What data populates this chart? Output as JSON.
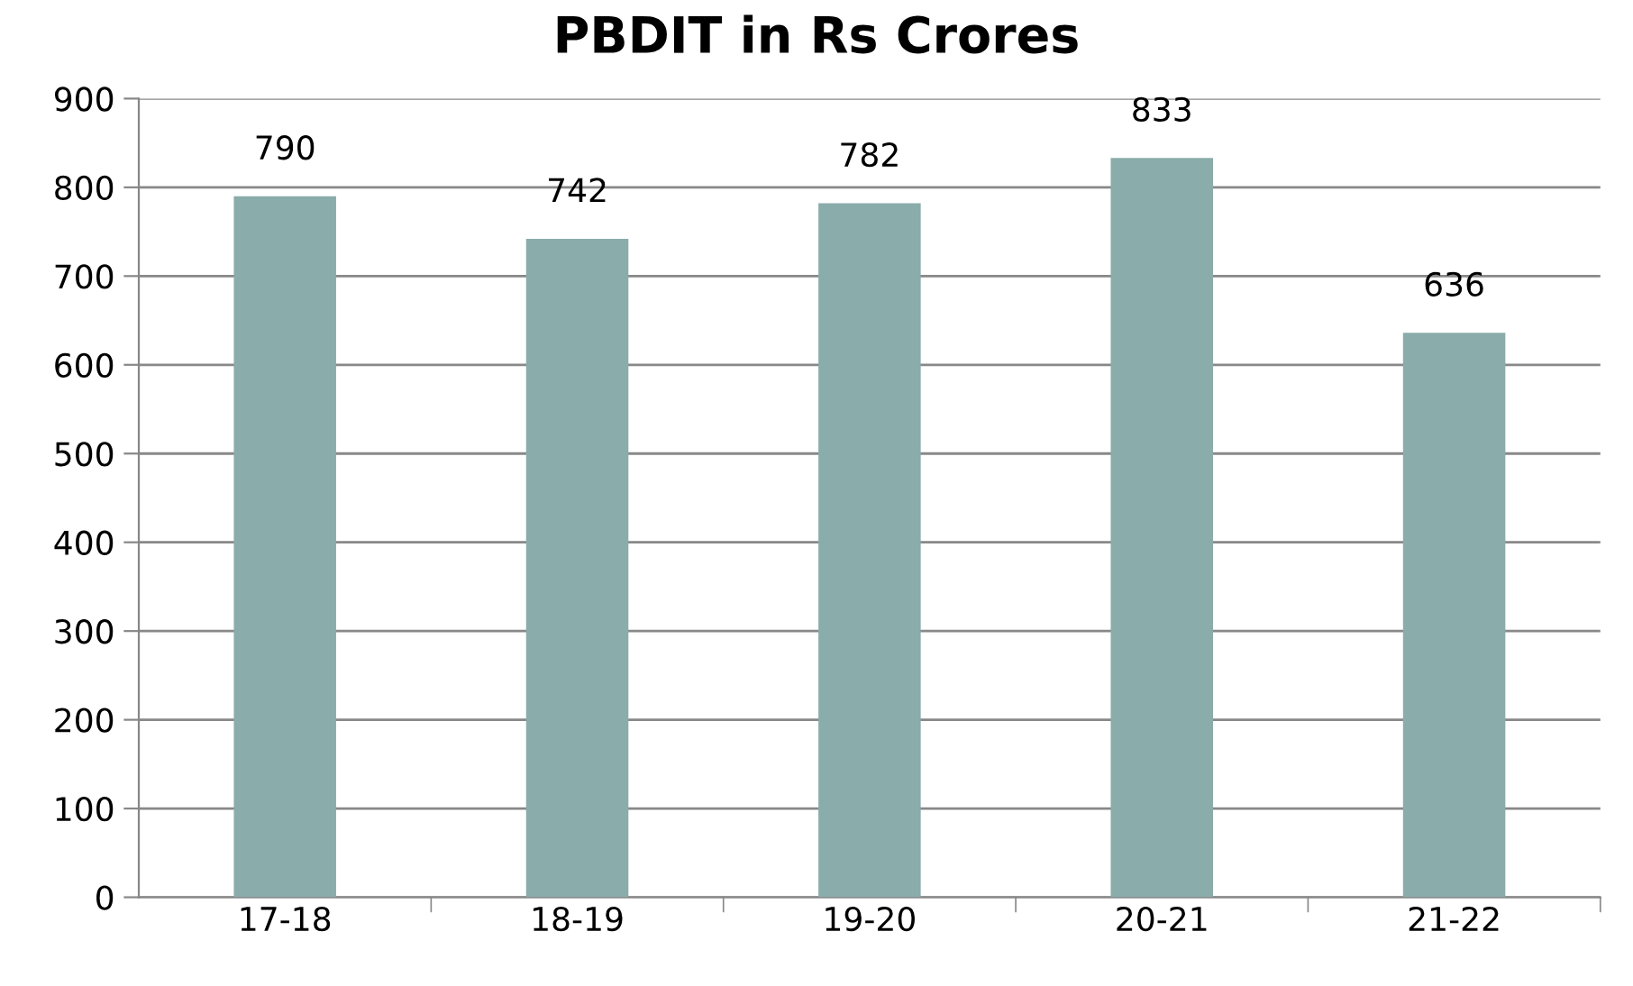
{
  "chart_data": {
    "type": "bar",
    "title": "PBDIT in Rs Crores",
    "categories": [
      "17-18",
      "18-19",
      "19-20",
      "20-21",
      "21-22"
    ],
    "values": [
      790,
      742,
      782,
      833,
      636
    ],
    "color": "#8aacab",
    "ylim": [
      0,
      900
    ],
    "yticks": [
      0,
      100,
      200,
      300,
      400,
      500,
      600,
      700,
      800,
      900
    ],
    "grid": "y",
    "data_labels": true
  }
}
